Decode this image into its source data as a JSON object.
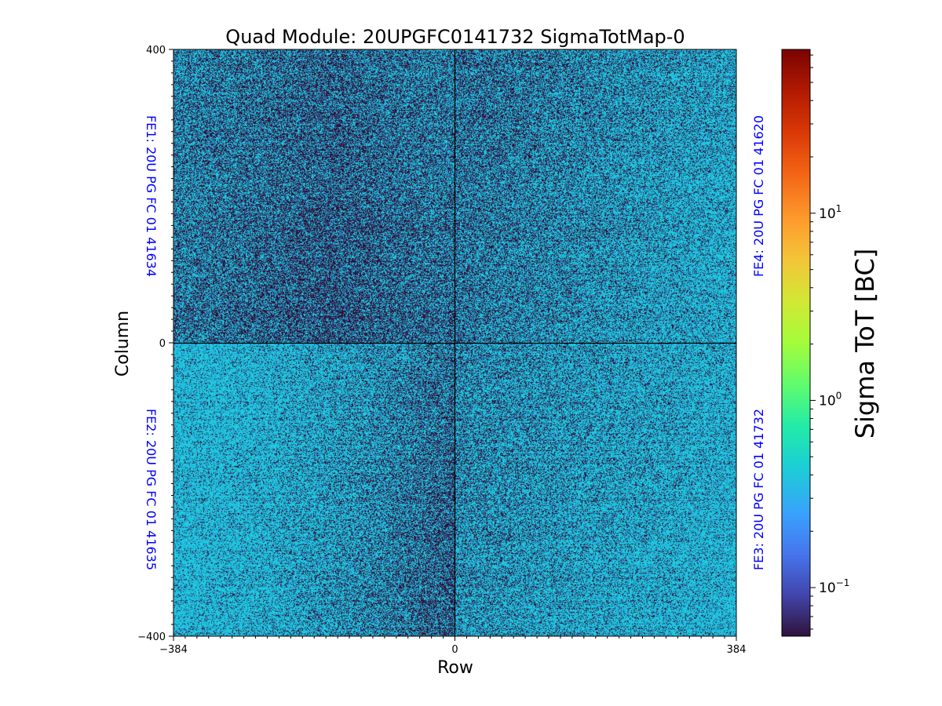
{
  "chart_data": {
    "type": "heatmap",
    "title": "Quad Module: 20UPGFC0141732 SigmaTotMap-0",
    "xlabel": "Row",
    "ylabel": "Column",
    "xlim": [
      -384,
      384
    ],
    "ylim": [
      -400,
      400
    ],
    "x_ticks": [
      {
        "value": -384,
        "label": "−384"
      },
      {
        "value": 0,
        "label": "0"
      },
      {
        "value": 384,
        "label": "384"
      }
    ],
    "y_ticks": [
      {
        "value": 400,
        "label": "400"
      },
      {
        "value": 0,
        "label": "0"
      },
      {
        "value": -400,
        "label": "−400"
      }
    ],
    "colorbar": {
      "label": "Sigma ToT [BC]",
      "scale": "log",
      "colormap": "turbo",
      "range": [
        0.055,
        75
      ],
      "ticks": [
        {
          "value": 0.1,
          "base": "10",
          "exp": "−1"
        },
        {
          "value": 1,
          "base": "10",
          "exp": "0"
        },
        {
          "value": 10,
          "base": "10",
          "exp": "1"
        }
      ]
    },
    "chips": [
      {
        "name": "FE1: 20U PG FC 01 41634",
        "quadrant": "top-left",
        "x_range": [
          -384,
          0
        ],
        "y_range": [
          0,
          400
        ]
      },
      {
        "name": "FE2: 20U PG FC 01 41635",
        "quadrant": "bottom-left",
        "x_range": [
          -384,
          0
        ],
        "y_range": [
          -400,
          0
        ]
      },
      {
        "name": "FE3: 20U PG FC 01 41732",
        "quadrant": "bottom-right",
        "x_range": [
          0,
          384
        ],
        "y_range": [
          -400,
          0
        ]
      },
      {
        "name": "FE4: 20U PG FC 01 41620",
        "quadrant": "top-right",
        "x_range": [
          0,
          384
        ],
        "y_range": [
          0,
          400
        ]
      }
    ],
    "typical_values": {
      "low_pixels": 0.06,
      "bulk": 0.35,
      "max": 0.5
    },
    "colors": {
      "chip_label": "#0000ff",
      "low": "#30123b",
      "bulk": "#1fc8de"
    }
  }
}
